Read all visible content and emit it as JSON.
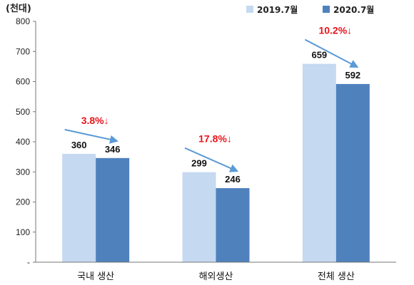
{
  "chart_data": {
    "type": "bar",
    "unit_label": "(천대)",
    "categories": [
      "국내 생산",
      "해외생산",
      "전체 생산"
    ],
    "series": [
      {
        "name": "2019.7월",
        "values": [
          360,
          299,
          659
        ],
        "color": "#c5d9f1"
      },
      {
        "name": "2020.7월",
        "values": [
          346,
          246,
          592
        ],
        "color": "#4f81bd"
      }
    ],
    "value_labels": [
      [
        "360",
        "299",
        "659"
      ],
      [
        "346",
        "246",
        "592"
      ]
    ],
    "annotations": [
      "3.8%↓",
      "17.8%↓",
      "10.2%↓"
    ],
    "ylim": [
      0,
      800
    ],
    "yticks": [
      "-",
      "100",
      "200",
      "300",
      "400",
      "500",
      "600",
      "700",
      "800"
    ],
    "legend_position": "top-right",
    "grid": false,
    "arrow_color": "#5b9bd5",
    "annotation_color": "#e8141b"
  }
}
